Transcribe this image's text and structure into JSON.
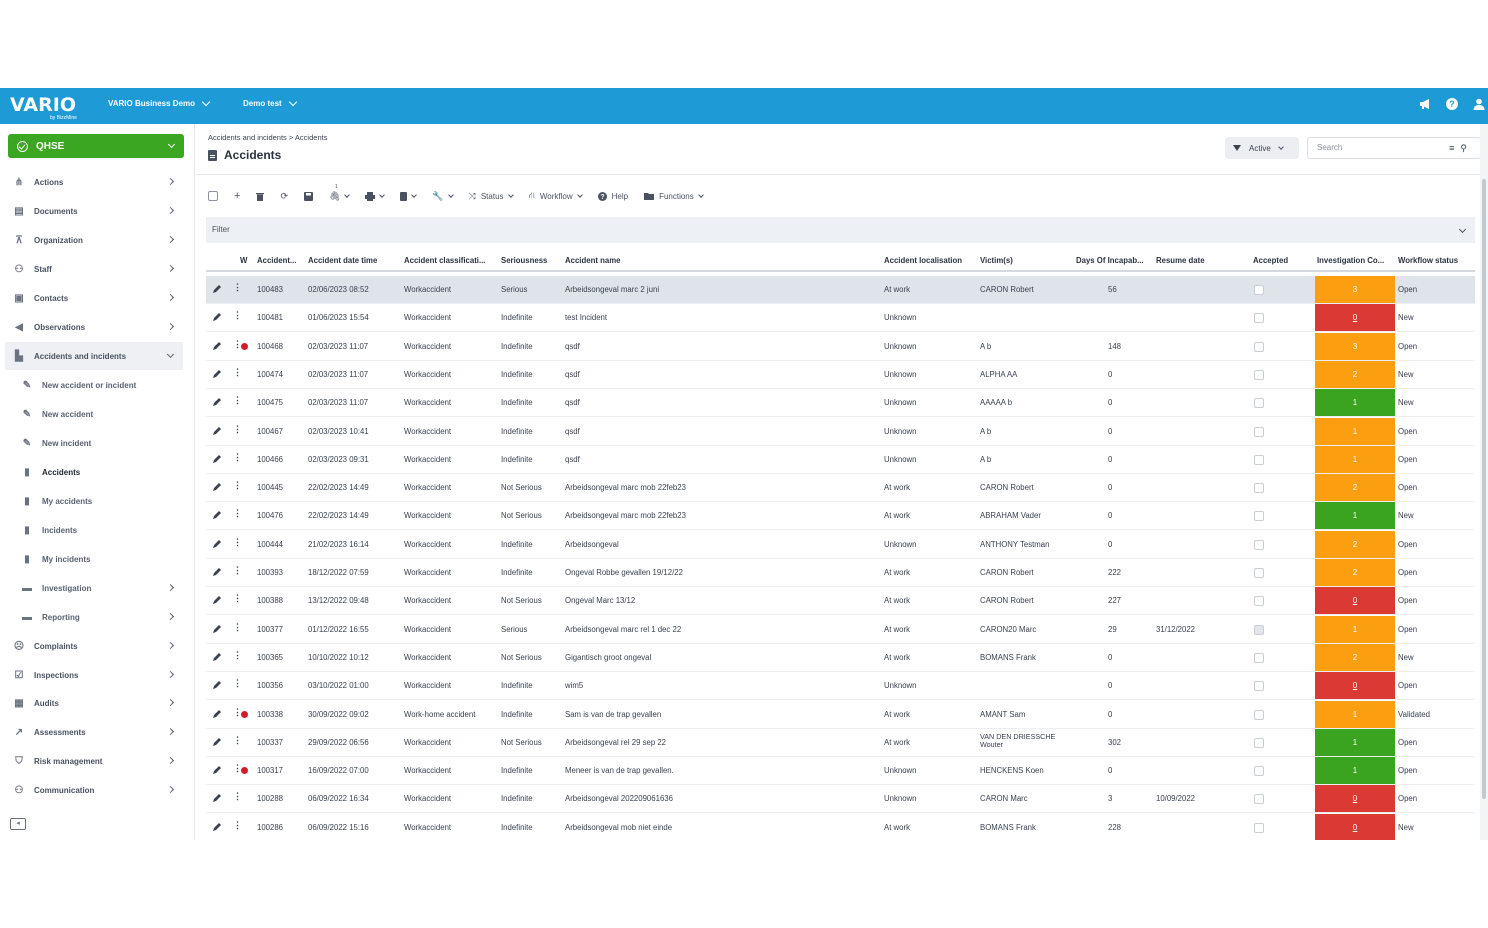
{
  "app": {
    "logo_text": "VARIO",
    "logo_sub": "by BizzMine",
    "environment": "VARIO Business Demo",
    "workspace": "Demo test"
  },
  "sidebar": {
    "module": "QHSE",
    "items": [
      {
        "label": "Actions",
        "icon": "actions-icon"
      },
      {
        "label": "Documents",
        "icon": "documents-icon"
      },
      {
        "label": "Organization",
        "icon": "organization-icon"
      },
      {
        "label": "Staff",
        "icon": "staff-icon"
      },
      {
        "label": "Contacts",
        "icon": "contacts-icon"
      },
      {
        "label": "Observations",
        "icon": "megaphone-icon"
      },
      {
        "label": "Accidents and incidents",
        "icon": "ambulance-icon"
      },
      {
        "label": "New accident or incident",
        "icon": "pencil-icon"
      },
      {
        "label": "New accident",
        "icon": "pencil-icon"
      },
      {
        "label": "New incident",
        "icon": "pencil-icon"
      },
      {
        "label": "Accidents",
        "icon": "file-icon"
      },
      {
        "label": "My accidents",
        "icon": "file-icon"
      },
      {
        "label": "Incidents",
        "icon": "file-icon"
      },
      {
        "label": "My incidents",
        "icon": "file-icon"
      },
      {
        "label": "Investigation",
        "icon": "folder-icon"
      },
      {
        "label": "Reporting",
        "icon": "folder-icon"
      },
      {
        "label": "Complaints",
        "icon": "complaints-icon"
      },
      {
        "label": "Inspections",
        "icon": "inspections-icon"
      },
      {
        "label": "Audits",
        "icon": "audits-icon"
      },
      {
        "label": "Assessments",
        "icon": "chart-icon"
      },
      {
        "label": "Risk management",
        "icon": "shield-icon"
      },
      {
        "label": "Communication",
        "icon": "communication-icon"
      }
    ]
  },
  "header": {
    "breadcrumb": "Accidents and incidents > Accidents",
    "title": "Accidents",
    "active_filter": "Active",
    "search_placeholder": "Search"
  },
  "toolbar": {
    "status": "Status",
    "workflow": "Workflow",
    "help": "Help",
    "functions": "Functions",
    "attach_count": "1"
  },
  "filter": {
    "label": "Filter"
  },
  "columns": [
    "W",
    "Accident...",
    "Accident date time",
    "Accident classificati...",
    "Seriousness",
    "Accident name",
    "Accident localisation",
    "Victim(s)",
    "Days Of Incapab...",
    "Resume date",
    "Accepted",
    "Investigation Co...",
    "Workflow status"
  ],
  "colors": {
    "orange": "#fb9e10",
    "red": "#db3a34",
    "green": "#3aa421",
    "accent": "#1e9bd7"
  },
  "rows": [
    {
      "id": "100483",
      "date": "02/06/2023 08:52",
      "cls": "Workaccident",
      "ser": "Serious",
      "name": "Arbeidsongeval marc 2 juni",
      "loc": "At work",
      "victim": "CARON Robert",
      "days": "56",
      "resume": "",
      "accepted": false,
      "inv": "3",
      "color": "orange",
      "wf": "Open",
      "dot": false
    },
    {
      "id": "100481",
      "date": "01/06/2023 15:54",
      "cls": "Workaccident",
      "ser": "Indefinite",
      "name": "test Incident",
      "loc": "Unknown",
      "victim": "",
      "days": "",
      "resume": "",
      "accepted": false,
      "inv": "0",
      "color": "red",
      "wf": "New",
      "dot": false
    },
    {
      "id": "100468",
      "date": "02/03/2023 11:07",
      "cls": "Workaccident",
      "ser": "Indefinite",
      "name": "qsdf",
      "loc": "Unknown",
      "victim": "A b",
      "days": "148",
      "resume": "",
      "accepted": false,
      "inv": "3",
      "color": "orange",
      "wf": "Open",
      "dot": true
    },
    {
      "id": "100474",
      "date": "02/03/2023 11:07",
      "cls": "Workaccident",
      "ser": "Indefinite",
      "name": "qsdf",
      "loc": "Unknown",
      "victim": "ALPHA AA",
      "days": "0",
      "resume": "",
      "accepted": false,
      "inv": "2",
      "color": "orange",
      "wf": "New",
      "dot": false
    },
    {
      "id": "100475",
      "date": "02/03/2023 11:07",
      "cls": "Workaccident",
      "ser": "Indefinite",
      "name": "qsdf",
      "loc": "Unknown",
      "victim": "AAAAA b",
      "days": "0",
      "resume": "",
      "accepted": false,
      "inv": "1",
      "color": "green",
      "wf": "New",
      "dot": false
    },
    {
      "id": "100467",
      "date": "02/03/2023 10:41",
      "cls": "Workaccident",
      "ser": "Indefinite",
      "name": "qsdf",
      "loc": "Unknown",
      "victim": "A b",
      "days": "0",
      "resume": "",
      "accepted": false,
      "inv": "1",
      "color": "orange",
      "wf": "Open",
      "dot": false
    },
    {
      "id": "100466",
      "date": "02/03/2023 09:31",
      "cls": "Workaccident",
      "ser": "Indefinite",
      "name": "qsdf",
      "loc": "Unknown",
      "victim": "A b",
      "days": "0",
      "resume": "",
      "accepted": false,
      "inv": "1",
      "color": "orange",
      "wf": "Open",
      "dot": false
    },
    {
      "id": "100445",
      "date": "22/02/2023 14:49",
      "cls": "Workaccident",
      "ser": "Not Serious",
      "name": "Arbeidsongeval marc mob 22feb23",
      "loc": "At work",
      "victim": "CARON Robert",
      "days": "0",
      "resume": "",
      "accepted": false,
      "inv": "2",
      "color": "orange",
      "wf": "Open",
      "dot": false
    },
    {
      "id": "100476",
      "date": "22/02/2023 14:49",
      "cls": "Workaccident",
      "ser": "Not Serious",
      "name": "Arbeidsongeval marc mob 22feb23",
      "loc": "At work",
      "victim": "ABRAHAM Vader",
      "days": "0",
      "resume": "",
      "accepted": false,
      "inv": "1",
      "color": "green",
      "wf": "New",
      "dot": false
    },
    {
      "id": "100444",
      "date": "21/02/2023 16:14",
      "cls": "Workaccident",
      "ser": "Indefinite",
      "name": "Arbeidsongeval",
      "loc": "Unknown",
      "victim": "ANTHONY Testman",
      "days": "0",
      "resume": "",
      "accepted": false,
      "inv": "2",
      "color": "orange",
      "wf": "Open",
      "dot": false
    },
    {
      "id": "100393",
      "date": "18/12/2022 07:59",
      "cls": "Workaccident",
      "ser": "Indefinite",
      "name": "Ongeval Robbe gevallen 19/12/22",
      "loc": "At work",
      "victim": "CARON Robert",
      "days": "222",
      "resume": "",
      "accepted": false,
      "inv": "2",
      "color": "orange",
      "wf": "Open",
      "dot": false
    },
    {
      "id": "100388",
      "date": "13/12/2022 09:48",
      "cls": "Workaccident",
      "ser": "Not Serious",
      "name": "Ongeval Marc 13/12",
      "loc": "At work",
      "victim": "CARON Robert",
      "days": "227",
      "resume": "",
      "accepted": false,
      "inv": "0",
      "color": "red",
      "wf": "Open",
      "dot": false
    },
    {
      "id": "100377",
      "date": "01/12/2022 16:55",
      "cls": "Workaccident",
      "ser": "Serious",
      "name": "Arbeidsongeval marc rel 1 dec 22",
      "loc": "At work",
      "victim": "CARON20 Marc",
      "days": "29",
      "resume": "31/12/2022",
      "accepted": true,
      "inv": "1",
      "color": "orange",
      "wf": "Open",
      "dot": false
    },
    {
      "id": "100365",
      "date": "10/10/2022 10:12",
      "cls": "Workaccident",
      "ser": "Not Serious",
      "name": "Gigantisch groot ongeval",
      "loc": "At work",
      "victim": "BOMANS Frank",
      "days": "0",
      "resume": "",
      "accepted": false,
      "inv": "2",
      "color": "orange",
      "wf": "New",
      "dot": false
    },
    {
      "id": "100356",
      "date": "03/10/2022 01:00",
      "cls": "Workaccident",
      "ser": "Indefinite",
      "name": "wim5",
      "loc": "Unknown",
      "victim": "",
      "days": "0",
      "resume": "",
      "accepted": false,
      "inv": "0",
      "color": "red",
      "wf": "Open",
      "dot": false
    },
    {
      "id": "100338",
      "date": "30/09/2022 09:02",
      "cls": "Work-home accident",
      "ser": "Indefinite",
      "name": "Sam is van de trap gevallen",
      "loc": "At work",
      "victim": "AMANT Sam",
      "days": "0",
      "resume": "",
      "accepted": false,
      "inv": "1",
      "color": "orange",
      "wf": "Validated",
      "dot": true
    },
    {
      "id": "100337",
      "date": "29/09/2022 06:56",
      "cls": "Workaccident",
      "ser": "Not Serious",
      "name": "Arbeidsongeval rel 29 sep 22",
      "loc": "At work",
      "victim": "VAN DEN DRIESSCHE Wouter",
      "days": "302",
      "resume": "",
      "accepted": false,
      "inv": "1",
      "color": "green",
      "wf": "Open",
      "dot": false
    },
    {
      "id": "100317",
      "date": "16/09/2022 07:00",
      "cls": "Workaccident",
      "ser": "Indefinite",
      "name": "Meneer is van de trap gevallen.",
      "loc": "Unknown",
      "victim": "HENCKENS Koen",
      "days": "0",
      "resume": "",
      "accepted": false,
      "inv": "1",
      "color": "green",
      "wf": "Open",
      "dot": true
    },
    {
      "id": "100288",
      "date": "06/09/2022 16:34",
      "cls": "Workaccident",
      "ser": "Indefinite",
      "name": "Arbeidsongeval 202209061636",
      "loc": "Unknown",
      "victim": "CARON Marc",
      "days": "3",
      "resume": "10/09/2022",
      "accepted": false,
      "inv": "0",
      "color": "red",
      "wf": "Open",
      "dot": false
    },
    {
      "id": "100286",
      "date": "06/09/2022 15:16",
      "cls": "Workaccident",
      "ser": "Indefinite",
      "name": "Arbeidsongeval mob niet einde",
      "loc": "At work",
      "victim": "BOMANS Frank",
      "days": "228",
      "resume": "",
      "accepted": false,
      "inv": "0",
      "color": "red",
      "wf": "New",
      "dot": false
    }
  ]
}
